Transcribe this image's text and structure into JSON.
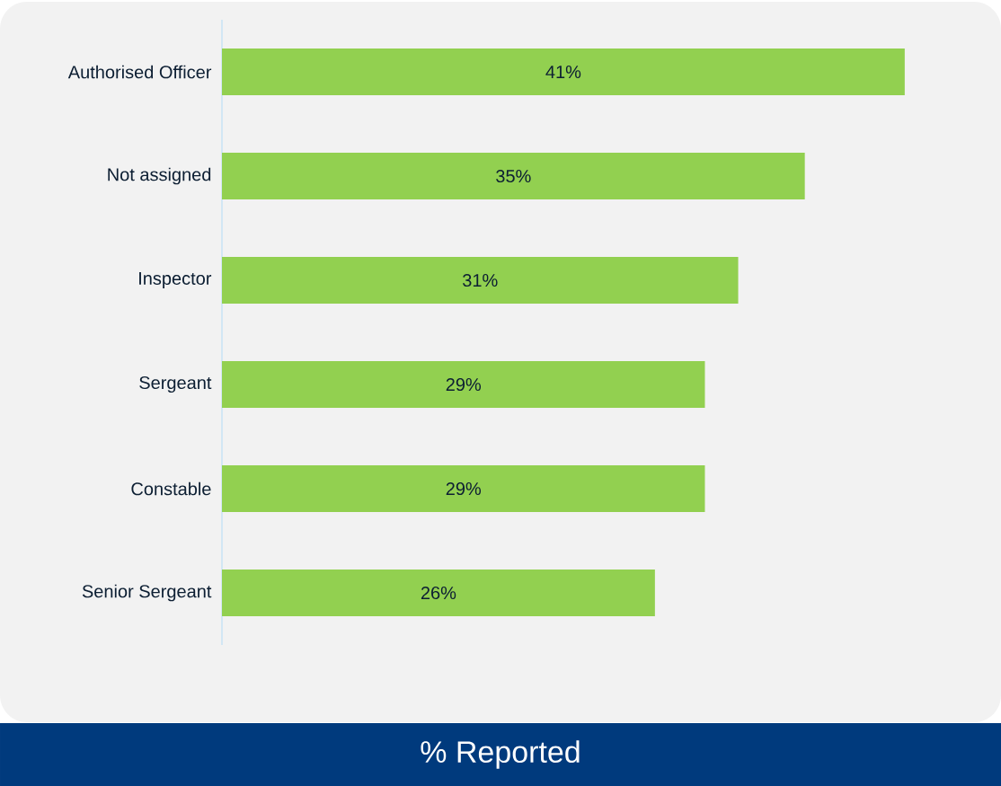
{
  "chart_data": {
    "type": "bar",
    "orientation": "horizontal",
    "xlabel": "% Reported",
    "categories": [
      "Authorised Officer",
      "Not assigned",
      "Inspector",
      "Sergeant",
      "Constable",
      "Senior Sergeant"
    ],
    "values": [
      41,
      35,
      31,
      29,
      29,
      26
    ],
    "value_labels": [
      "41%",
      "35%",
      "31%",
      "29%",
      "29%",
      "26%"
    ],
    "color": "#92d050"
  }
}
